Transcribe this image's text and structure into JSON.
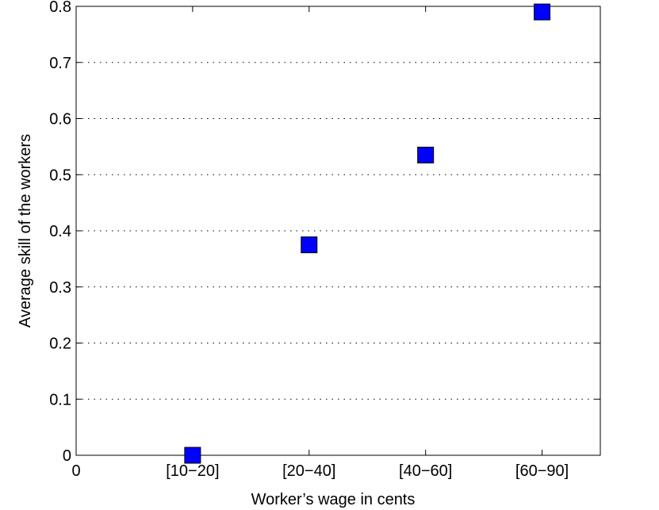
{
  "chart_data": {
    "type": "scatter",
    "title": "",
    "xlabel": "Worker’s wage in cents",
    "ylabel": "Average skill of the workers",
    "x_ticks": [
      {
        "pos": 0,
        "label": "0"
      },
      {
        "pos": 1,
        "label": "[10−20]"
      },
      {
        "pos": 2,
        "label": "[20−40]"
      },
      {
        "pos": 3,
        "label": "[40−60]"
      },
      {
        "pos": 4,
        "label": "[60−90]"
      }
    ],
    "xlim": [
      0,
      4.5
    ],
    "ylim": [
      0,
      0.8
    ],
    "y_ticks": [
      "0",
      "0.1",
      "0.2",
      "0.3",
      "0.4",
      "0.5",
      "0.6",
      "0.7",
      "0.8"
    ],
    "grid": "horizontal dotted",
    "marker": "square",
    "series": [
      {
        "categories": [
          "[10−20]",
          "[20−40]",
          "[40−60]",
          "[60−90]"
        ],
        "x": [
          1,
          2,
          3,
          4
        ],
        "y": [
          0.0,
          0.375,
          0.535,
          0.79
        ]
      }
    ],
    "colors": {
      "marker_fill": "#0000ff",
      "marker_edge": "#000000"
    }
  }
}
